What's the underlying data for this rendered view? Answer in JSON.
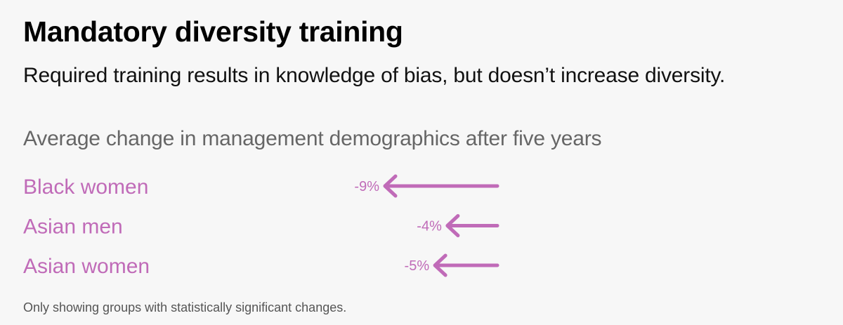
{
  "title": "Mandatory diversity training",
  "subtitle": "Required training results in knowledge of bias, but doesn’t increase diversity.",
  "footnote": "Only showing groups with statistically significant changes.",
  "colors": {
    "accent": "#c06bb8",
    "background": "#f7f7f7"
  },
  "chart_data": {
    "type": "bar",
    "title": "Average change in management demographics after five years",
    "categories": [
      "Black women",
      "Asian men",
      "Asian women"
    ],
    "values": [
      -9,
      -4,
      -5
    ],
    "value_labels": [
      "-9%",
      "-4%",
      "-5%"
    ],
    "unit": "%",
    "xlim": [
      -9,
      0
    ],
    "grid": false,
    "mark": "arrow"
  }
}
